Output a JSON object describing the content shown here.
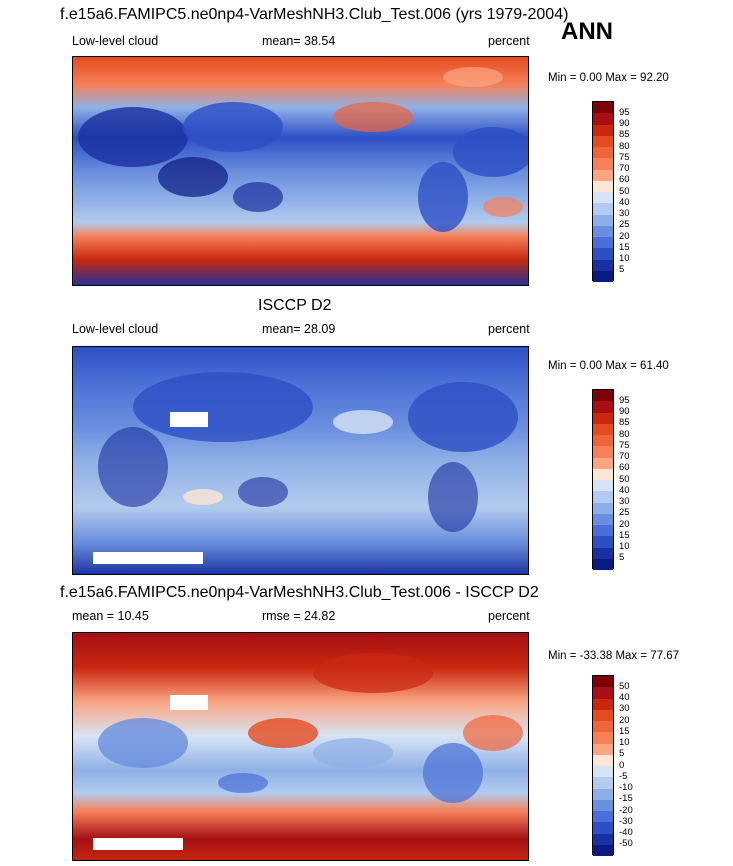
{
  "season": "ANN",
  "panels": [
    {
      "title": "f.e15a6.FAMIPC5.ne0np4-VarMeshNH3.Club_Test.006 (yrs 1979-2004)",
      "left_label": "Low-level cloud",
      "center_label": "mean=  38.54",
      "right_label": "percent",
      "minmax": "Min =   0.00 Max =  92.20",
      "colorbar_labels": [
        "95",
        "90",
        "85",
        "80",
        "75",
        "70",
        "60",
        "50",
        "40",
        "30",
        "25",
        "20",
        "15",
        "10",
        "5"
      ]
    },
    {
      "title": "ISCCP D2",
      "left_label": "Low-level cloud",
      "center_label": "mean=  28.09",
      "right_label": "percent",
      "minmax": "Min =   0.00 Max =  61.40",
      "colorbar_labels": [
        "95",
        "90",
        "85",
        "80",
        "75",
        "70",
        "60",
        "50",
        "40",
        "30",
        "25",
        "20",
        "15",
        "10",
        "5"
      ]
    },
    {
      "title": "f.e15a6.FAMIPC5.ne0np4-VarMeshNH3.Club_Test.006 - ISCCP D2",
      "left_label": "mean =  10.45",
      "center_label": "rmse =  24.82",
      "right_label": "percent",
      "minmax": "Min = -33.38 Max =  77.67",
      "colorbar_labels": [
        "50",
        "40",
        "30",
        "20",
        "15",
        "10",
        "5",
        "0",
        "-5",
        "-10",
        "-15",
        "-20",
        "-30",
        "-40",
        "-50"
      ]
    }
  ],
  "colors": {
    "scale": [
      "#7a0403",
      "#a50f15",
      "#c9280f",
      "#e54b20",
      "#f0643a",
      "#f68058",
      "#fba583",
      "#fde6d4",
      "#d7e4f5",
      "#b3cbee",
      "#8fb0e6",
      "#6a8fde",
      "#4a6fd6",
      "#2d4fc4",
      "#1a30a0",
      "#0a1a80"
    ]
  }
}
